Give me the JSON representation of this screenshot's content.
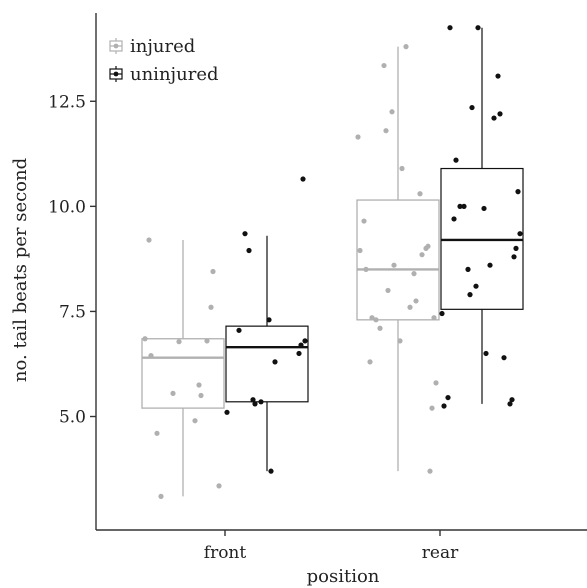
{
  "chart_data": {
    "type": "box",
    "title": "",
    "xlabel": "position",
    "ylabel": "no. tail beats per second",
    "categories": [
      "front",
      "rear"
    ],
    "ylim": [
      2.3,
      14.6
    ],
    "yticks": [
      "5.0",
      "7.5",
      "10.0",
      "12.5"
    ],
    "ytick_values": [
      5.0,
      7.5,
      10.0,
      12.5
    ],
    "grid": false,
    "legend_position": "top-left",
    "series": [
      {
        "name": "injured",
        "color": "#b0b0b0",
        "boxes": [
          {
            "category": "front",
            "min": 3.1,
            "q1": 5.2,
            "median": 6.4,
            "q3": 6.85,
            "max": 9.2
          },
          {
            "category": "rear",
            "min": 3.7,
            "q1": 7.3,
            "median": 8.5,
            "q3": 10.15,
            "max": 13.8
          }
        ],
        "points": [
          {
            "category": "front",
            "y": [
              9.2,
              8.45,
              7.6,
              6.85,
              6.8,
              6.78,
              6.45,
              5.75,
              5.55,
              5.5,
              4.9,
              4.6,
              3.35,
              3.1
            ]
          },
          {
            "category": "rear",
            "y": [
              13.8,
              13.35,
              12.25,
              11.8,
              11.65,
              10.9,
              10.3,
              9.65,
              9.05,
              9.0,
              8.95,
              8.85,
              8.6,
              8.5,
              8.4,
              8.0,
              7.75,
              7.6,
              7.35,
              7.35,
              7.3,
              7.1,
              6.8,
              6.3,
              5.8,
              5.2,
              3.7
            ]
          }
        ]
      },
      {
        "name": "uninjured",
        "color": "#111111",
        "boxes": [
          {
            "category": "front",
            "min": 3.7,
            "q1": 5.35,
            "median": 6.65,
            "q3": 7.15,
            "max": 9.3
          },
          {
            "category": "rear",
            "min": 5.3,
            "q1": 7.55,
            "median": 9.2,
            "q3": 10.9,
            "max": 14.25
          }
        ],
        "points": [
          {
            "category": "front",
            "y": [
              10.65,
              9.35,
              8.95,
              7.3,
              7.05,
              6.8,
              6.7,
              6.5,
              6.3,
              5.4,
              5.35,
              5.3,
              5.1,
              3.7
            ]
          },
          {
            "category": "rear",
            "y": [
              14.25,
              14.25,
              13.1,
              12.35,
              12.2,
              12.1,
              11.1,
              10.35,
              10.0,
              10.0,
              9.95,
              9.7,
              9.35,
              9.0,
              8.8,
              8.6,
              8.5,
              8.1,
              7.9,
              7.45,
              6.5,
              6.4,
              5.45,
              5.4,
              5.3,
              5.25
            ]
          }
        ]
      }
    ]
  }
}
